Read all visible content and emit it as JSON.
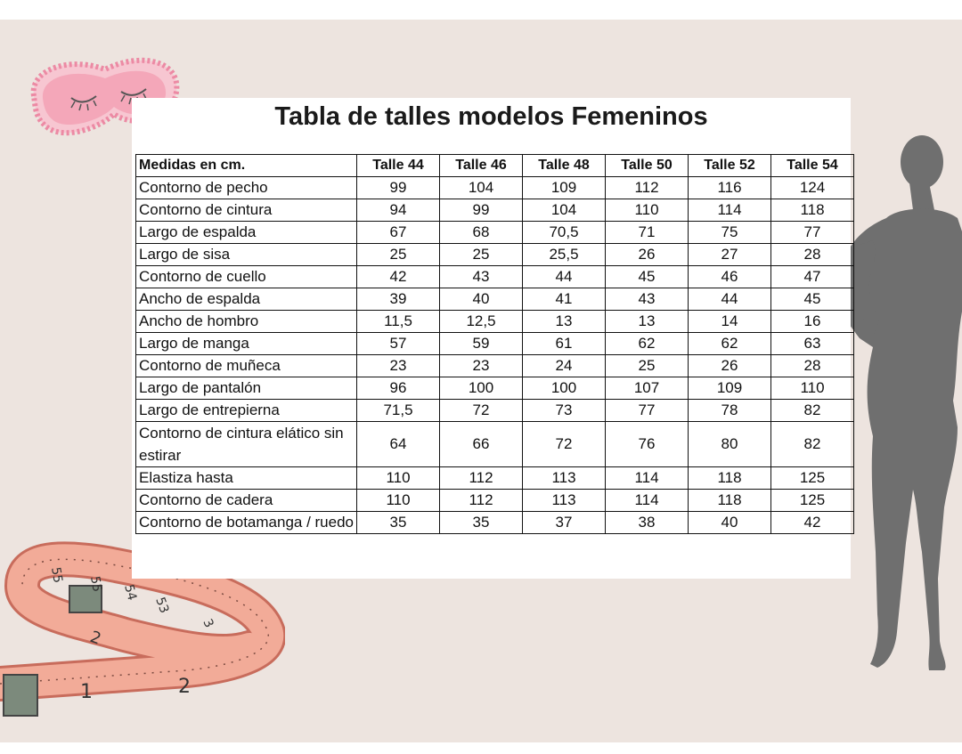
{
  "title": "Tabla de talles modelos Femeninos",
  "table": {
    "header": [
      "Medidas en cm.",
      "Talle 44",
      "Talle 46",
      "Talle 48",
      "Talle 50",
      "Talle 52",
      "Talle 54"
    ],
    "rows": [
      {
        "label": "Contorno de pecho",
        "values": [
          "99",
          "104",
          "109",
          "112",
          "116",
          "124"
        ]
      },
      {
        "label": "Contorno de cintura",
        "values": [
          "94",
          "99",
          "104",
          "110",
          "114",
          "118"
        ]
      },
      {
        "label": "Largo de espalda",
        "values": [
          "67",
          "68",
          "70,5",
          "71",
          "75",
          "77"
        ]
      },
      {
        "label": "Largo de sisa",
        "values": [
          "25",
          "25",
          "25,5",
          "26",
          "27",
          "28"
        ]
      },
      {
        "label": "Contorno de cuello",
        "values": [
          "42",
          "43",
          "44",
          "45",
          "46",
          "47"
        ]
      },
      {
        "label": "Ancho de espalda",
        "values": [
          "39",
          "40",
          "41",
          "43",
          "44",
          "45"
        ]
      },
      {
        "label": "Ancho de hombro",
        "values": [
          "11,5",
          "12,5",
          "13",
          "13",
          "14",
          "16"
        ]
      },
      {
        "label": "Largo de manga",
        "values": [
          "57",
          "59",
          "61",
          "62",
          "62",
          "63"
        ]
      },
      {
        "label": "Contorno de muñeca",
        "values": [
          "23",
          "23",
          "24",
          "25",
          "26",
          "28"
        ]
      },
      {
        "label": "Largo de pantalón",
        "values": [
          "96",
          "100",
          "100",
          "107",
          "109",
          "110"
        ]
      },
      {
        "label": "Largo de entrepierna",
        "values": [
          "71,5",
          "72",
          "73",
          "77",
          "78",
          "82"
        ]
      },
      {
        "label": "Contorno de cintura elático sin estirar",
        "values": [
          "64",
          "66",
          "72",
          "76",
          "80",
          "82"
        ]
      },
      {
        "label": "Elastiza hasta",
        "values": [
          "110",
          "112",
          "113",
          "114",
          "118",
          "125"
        ]
      },
      {
        "label": "Contorno de cadera",
        "values": [
          "110",
          "112",
          "113",
          "114",
          "118",
          "125"
        ]
      },
      {
        "label": "Contorno de botamanga / ruedo",
        "values": [
          "35",
          "35",
          "37",
          "38",
          "40",
          "42"
        ]
      }
    ]
  },
  "decorations": {
    "sleep_mask_icon": "sleep-mask-icon",
    "tape_measure_icon": "tape-measure-icon",
    "silhouette_icon": "woman-silhouette-icon",
    "tape_numbers": [
      "1",
      "2",
      "55",
      "55",
      "54",
      "53",
      "3",
      "2"
    ],
    "colors": {
      "background": "#ede4df",
      "mask": "#f4a7b9",
      "tape": "#f0a28f",
      "silhouette": "#6f6f6f"
    }
  }
}
